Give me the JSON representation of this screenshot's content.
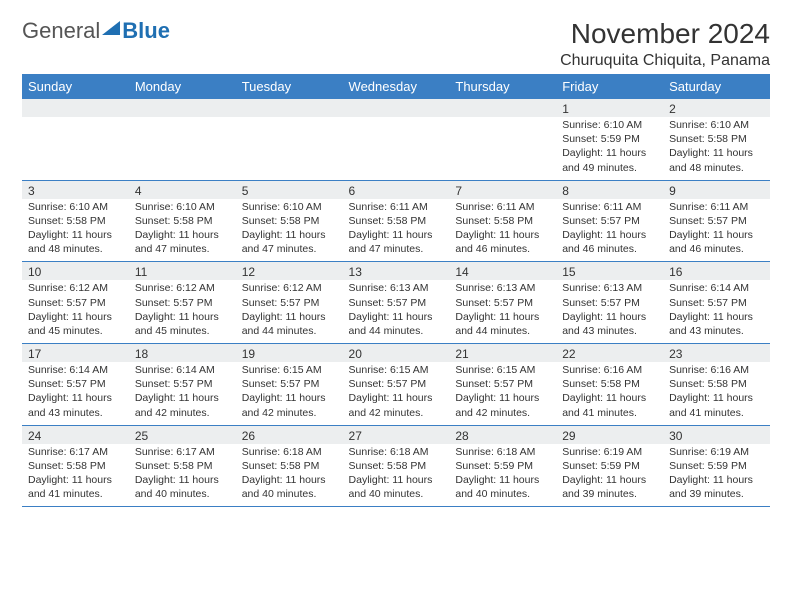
{
  "logo": {
    "text_general": "General",
    "text_blue": "Blue"
  },
  "title": "November 2024",
  "location": "Churuquita Chiquita, Panama",
  "colors": {
    "header_bg": "#3b7fc4",
    "daynum_bg": "#eceeef",
    "border": "#3b7fc4",
    "logo_blue": "#1f6fb2"
  },
  "days_of_week": [
    "Sunday",
    "Monday",
    "Tuesday",
    "Wednesday",
    "Thursday",
    "Friday",
    "Saturday"
  ],
  "weeks": [
    [
      {},
      {},
      {},
      {},
      {},
      {
        "num": "1",
        "sunrise": "Sunrise: 6:10 AM",
        "sunset": "Sunset: 5:59 PM",
        "daylight1": "Daylight: 11 hours",
        "daylight2": "and 49 minutes."
      },
      {
        "num": "2",
        "sunrise": "Sunrise: 6:10 AM",
        "sunset": "Sunset: 5:58 PM",
        "daylight1": "Daylight: 11 hours",
        "daylight2": "and 48 minutes."
      }
    ],
    [
      {
        "num": "3",
        "sunrise": "Sunrise: 6:10 AM",
        "sunset": "Sunset: 5:58 PM",
        "daylight1": "Daylight: 11 hours",
        "daylight2": "and 48 minutes."
      },
      {
        "num": "4",
        "sunrise": "Sunrise: 6:10 AM",
        "sunset": "Sunset: 5:58 PM",
        "daylight1": "Daylight: 11 hours",
        "daylight2": "and 47 minutes."
      },
      {
        "num": "5",
        "sunrise": "Sunrise: 6:10 AM",
        "sunset": "Sunset: 5:58 PM",
        "daylight1": "Daylight: 11 hours",
        "daylight2": "and 47 minutes."
      },
      {
        "num": "6",
        "sunrise": "Sunrise: 6:11 AM",
        "sunset": "Sunset: 5:58 PM",
        "daylight1": "Daylight: 11 hours",
        "daylight2": "and 47 minutes."
      },
      {
        "num": "7",
        "sunrise": "Sunrise: 6:11 AM",
        "sunset": "Sunset: 5:58 PM",
        "daylight1": "Daylight: 11 hours",
        "daylight2": "and 46 minutes."
      },
      {
        "num": "8",
        "sunrise": "Sunrise: 6:11 AM",
        "sunset": "Sunset: 5:57 PM",
        "daylight1": "Daylight: 11 hours",
        "daylight2": "and 46 minutes."
      },
      {
        "num": "9",
        "sunrise": "Sunrise: 6:11 AM",
        "sunset": "Sunset: 5:57 PM",
        "daylight1": "Daylight: 11 hours",
        "daylight2": "and 46 minutes."
      }
    ],
    [
      {
        "num": "10",
        "sunrise": "Sunrise: 6:12 AM",
        "sunset": "Sunset: 5:57 PM",
        "daylight1": "Daylight: 11 hours",
        "daylight2": "and 45 minutes."
      },
      {
        "num": "11",
        "sunrise": "Sunrise: 6:12 AM",
        "sunset": "Sunset: 5:57 PM",
        "daylight1": "Daylight: 11 hours",
        "daylight2": "and 45 minutes."
      },
      {
        "num": "12",
        "sunrise": "Sunrise: 6:12 AM",
        "sunset": "Sunset: 5:57 PM",
        "daylight1": "Daylight: 11 hours",
        "daylight2": "and 44 minutes."
      },
      {
        "num": "13",
        "sunrise": "Sunrise: 6:13 AM",
        "sunset": "Sunset: 5:57 PM",
        "daylight1": "Daylight: 11 hours",
        "daylight2": "and 44 minutes."
      },
      {
        "num": "14",
        "sunrise": "Sunrise: 6:13 AM",
        "sunset": "Sunset: 5:57 PM",
        "daylight1": "Daylight: 11 hours",
        "daylight2": "and 44 minutes."
      },
      {
        "num": "15",
        "sunrise": "Sunrise: 6:13 AM",
        "sunset": "Sunset: 5:57 PM",
        "daylight1": "Daylight: 11 hours",
        "daylight2": "and 43 minutes."
      },
      {
        "num": "16",
        "sunrise": "Sunrise: 6:14 AM",
        "sunset": "Sunset: 5:57 PM",
        "daylight1": "Daylight: 11 hours",
        "daylight2": "and 43 minutes."
      }
    ],
    [
      {
        "num": "17",
        "sunrise": "Sunrise: 6:14 AM",
        "sunset": "Sunset: 5:57 PM",
        "daylight1": "Daylight: 11 hours",
        "daylight2": "and 43 minutes."
      },
      {
        "num": "18",
        "sunrise": "Sunrise: 6:14 AM",
        "sunset": "Sunset: 5:57 PM",
        "daylight1": "Daylight: 11 hours",
        "daylight2": "and 42 minutes."
      },
      {
        "num": "19",
        "sunrise": "Sunrise: 6:15 AM",
        "sunset": "Sunset: 5:57 PM",
        "daylight1": "Daylight: 11 hours",
        "daylight2": "and 42 minutes."
      },
      {
        "num": "20",
        "sunrise": "Sunrise: 6:15 AM",
        "sunset": "Sunset: 5:57 PM",
        "daylight1": "Daylight: 11 hours",
        "daylight2": "and 42 minutes."
      },
      {
        "num": "21",
        "sunrise": "Sunrise: 6:15 AM",
        "sunset": "Sunset: 5:57 PM",
        "daylight1": "Daylight: 11 hours",
        "daylight2": "and 42 minutes."
      },
      {
        "num": "22",
        "sunrise": "Sunrise: 6:16 AM",
        "sunset": "Sunset: 5:58 PM",
        "daylight1": "Daylight: 11 hours",
        "daylight2": "and 41 minutes."
      },
      {
        "num": "23",
        "sunrise": "Sunrise: 6:16 AM",
        "sunset": "Sunset: 5:58 PM",
        "daylight1": "Daylight: 11 hours",
        "daylight2": "and 41 minutes."
      }
    ],
    [
      {
        "num": "24",
        "sunrise": "Sunrise: 6:17 AM",
        "sunset": "Sunset: 5:58 PM",
        "daylight1": "Daylight: 11 hours",
        "daylight2": "and 41 minutes."
      },
      {
        "num": "25",
        "sunrise": "Sunrise: 6:17 AM",
        "sunset": "Sunset: 5:58 PM",
        "daylight1": "Daylight: 11 hours",
        "daylight2": "and 40 minutes."
      },
      {
        "num": "26",
        "sunrise": "Sunrise: 6:18 AM",
        "sunset": "Sunset: 5:58 PM",
        "daylight1": "Daylight: 11 hours",
        "daylight2": "and 40 minutes."
      },
      {
        "num": "27",
        "sunrise": "Sunrise: 6:18 AM",
        "sunset": "Sunset: 5:58 PM",
        "daylight1": "Daylight: 11 hours",
        "daylight2": "and 40 minutes."
      },
      {
        "num": "28",
        "sunrise": "Sunrise: 6:18 AM",
        "sunset": "Sunset: 5:59 PM",
        "daylight1": "Daylight: 11 hours",
        "daylight2": "and 40 minutes."
      },
      {
        "num": "29",
        "sunrise": "Sunrise: 6:19 AM",
        "sunset": "Sunset: 5:59 PM",
        "daylight1": "Daylight: 11 hours",
        "daylight2": "and 39 minutes."
      },
      {
        "num": "30",
        "sunrise": "Sunrise: 6:19 AM",
        "sunset": "Sunset: 5:59 PM",
        "daylight1": "Daylight: 11 hours",
        "daylight2": "and 39 minutes."
      }
    ]
  ]
}
